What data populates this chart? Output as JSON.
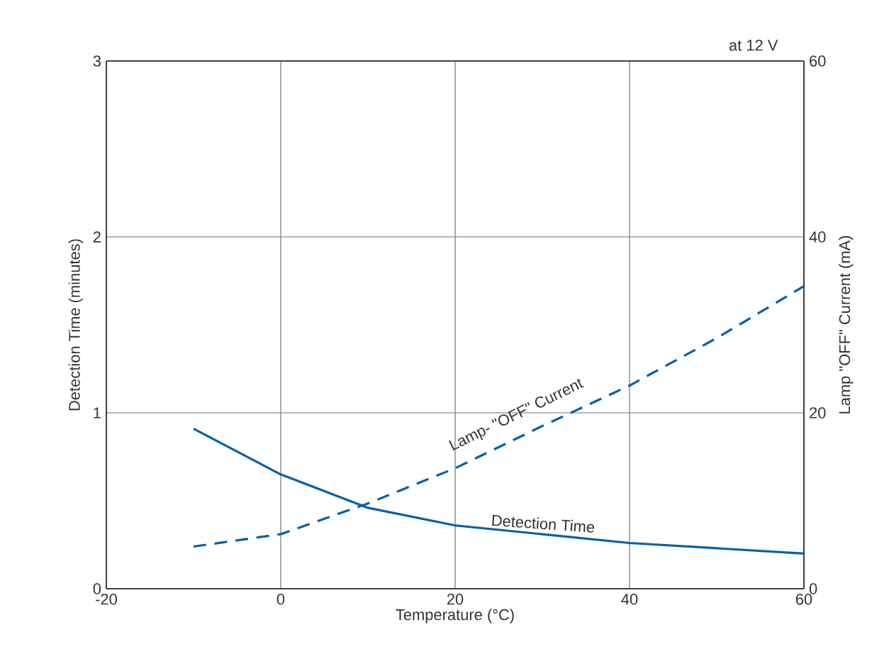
{
  "chart_data": {
    "type": "line",
    "xlabel": "Temperature (°C)",
    "ylabel": "Detection Time (minutes)",
    "y2label": "Lamp \"OFF\" Current (mA)",
    "annotations": [
      "at 12 V"
    ],
    "xlim": [
      -20,
      60
    ],
    "xticks": [
      -20,
      0,
      20,
      40,
      60
    ],
    "ylim": [
      0,
      3
    ],
    "yticks": [
      0,
      1,
      2,
      3
    ],
    "y2lim": [
      0,
      60
    ],
    "y2ticks": [
      0,
      20,
      40,
      60
    ],
    "grid": true,
    "series": [
      {
        "name": "Detection Time",
        "color": "#0060a8",
        "line_style": "solid",
        "x": [
          -10,
          -5,
          0,
          10,
          20,
          30,
          40,
          50,
          60
        ],
        "values": [
          0.91,
          0.78,
          0.65,
          0.46,
          0.36,
          0.31,
          0.26,
          0.23,
          0.2
        ]
      },
      {
        "name": "Lamp- \"OFF\" Current",
        "color": "#0060a8",
        "line_style": "dashed",
        "axis": "y2",
        "x": [
          -10,
          0,
          10,
          20,
          30,
          40,
          50,
          60
        ],
        "values": [
          4.8,
          6.2,
          9.7,
          13.7,
          18.5,
          23.1,
          28.5,
          34.4
        ]
      }
    ]
  }
}
